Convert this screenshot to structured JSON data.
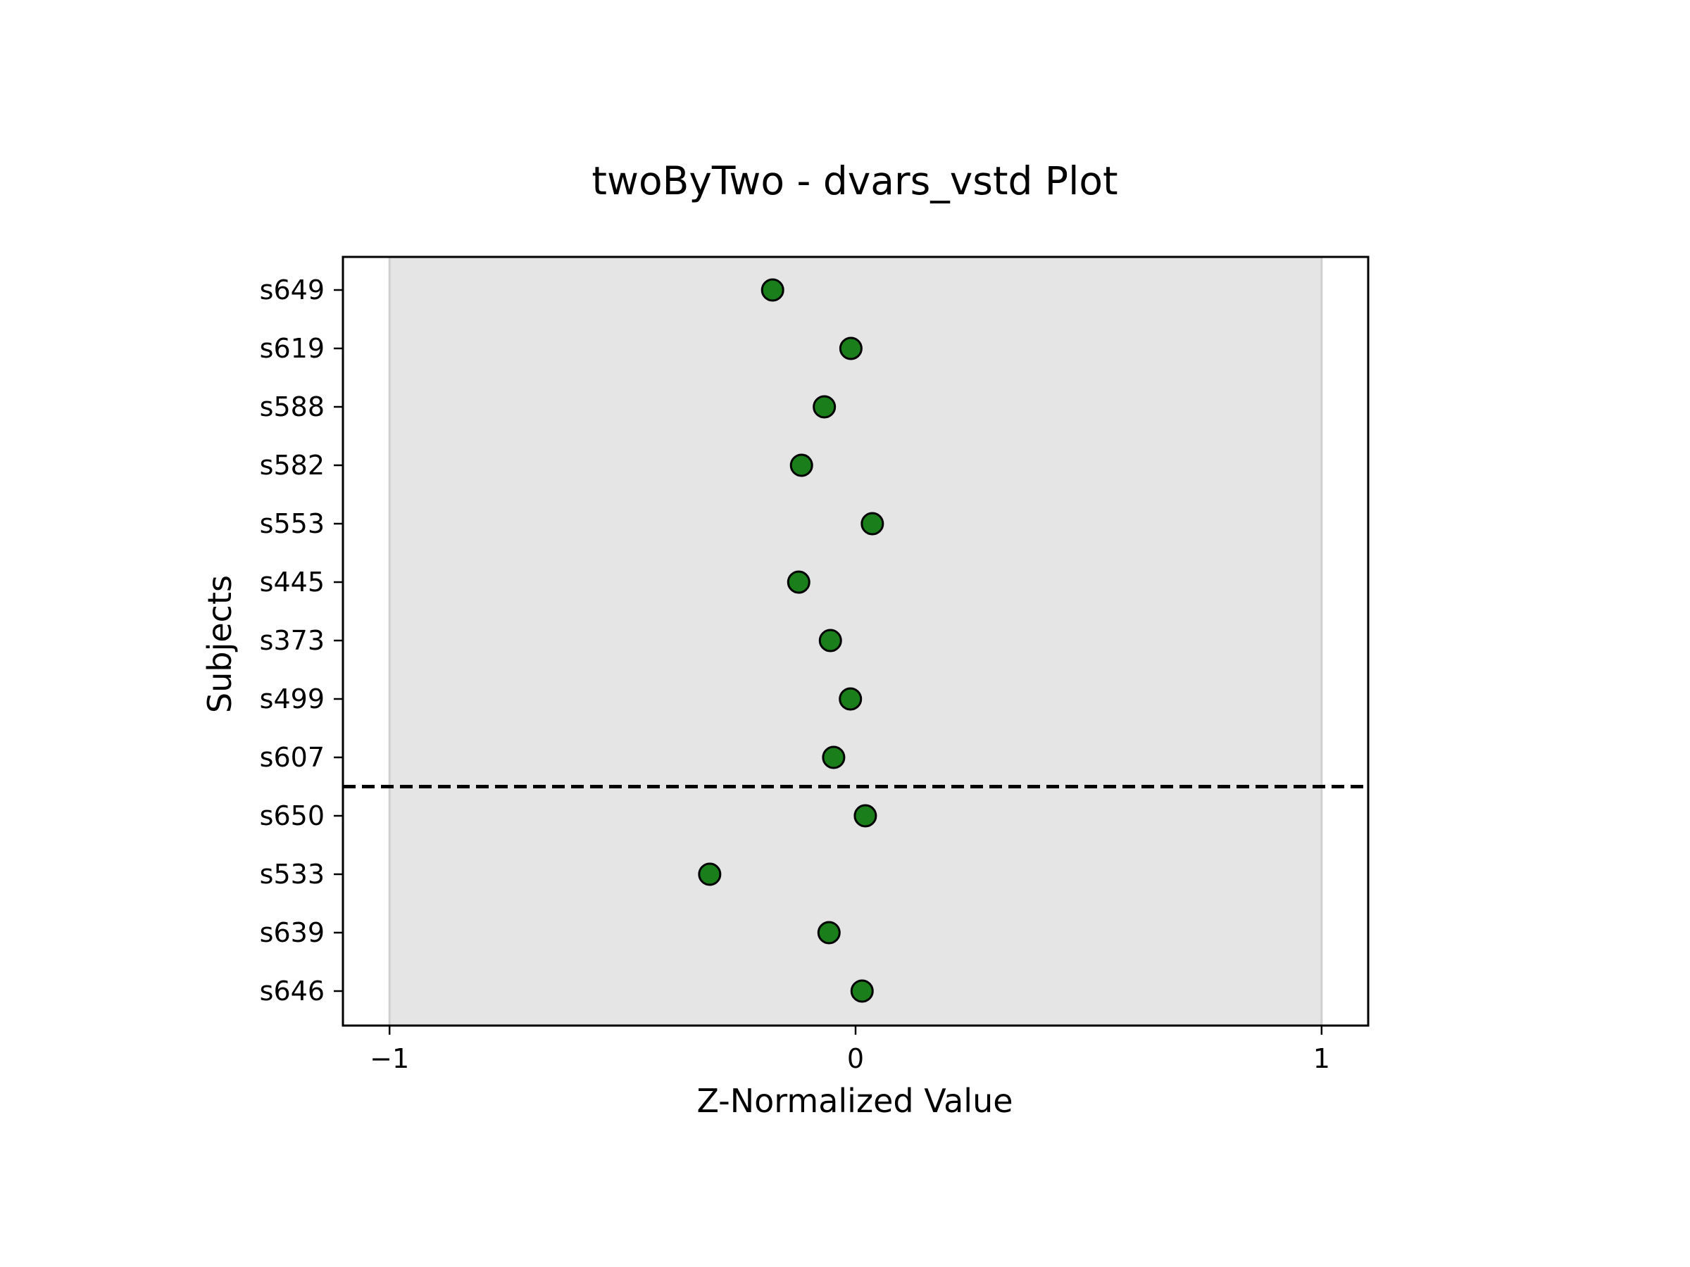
{
  "chart_data": {
    "type": "scatter",
    "title": "twoByTwo - dvars_vstd Plot",
    "xlabel": "Z-Normalized Value",
    "ylabel": "Subjects",
    "xlim": [
      -1.1,
      1.1
    ],
    "xticks": [
      -1,
      0,
      1
    ],
    "xtick_labels": [
      "−1",
      "0",
      "1"
    ],
    "shaded_range": [
      -1,
      1
    ],
    "group_separator_after_index": 3,
    "categories": [
      "s646",
      "s639",
      "s533",
      "s650",
      "s607",
      "s499",
      "s373",
      "s445",
      "s553",
      "s582",
      "s588",
      "s619",
      "s649"
    ],
    "values": [
      0.014,
      -0.057,
      -0.313,
      0.021,
      -0.047,
      -0.011,
      -0.054,
      -0.122,
      0.036,
      -0.116,
      -0.067,
      -0.01,
      -0.178
    ],
    "grid": false,
    "marker_color": "#1a7f1a",
    "marker_edge_color": "#000000",
    "shade_color": "#e5e5e5"
  }
}
